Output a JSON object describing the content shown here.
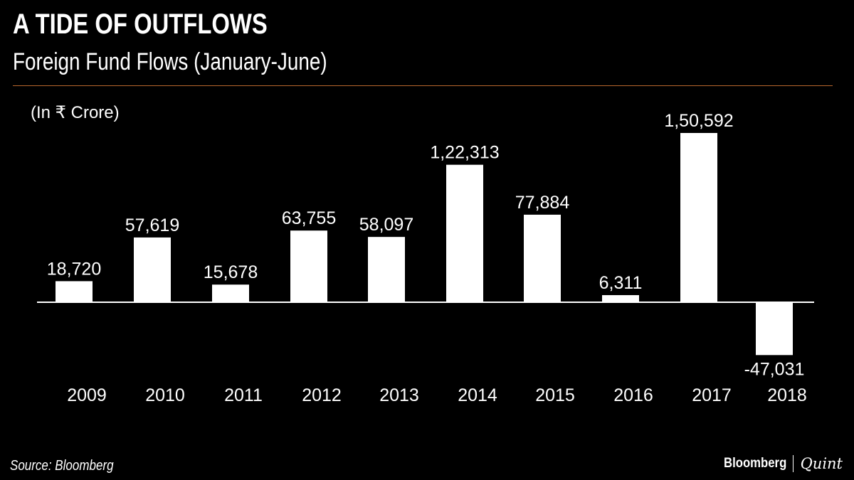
{
  "header": {
    "title": "A TIDE OF OUTFLOWS",
    "subtitle": "Foreign Fund Flows (January-June)",
    "units": "(In ₹ Crore)"
  },
  "footer": {
    "source": "Source: Bloomberg",
    "brand_primary": "Bloomberg",
    "brand_secondary": "Quint"
  },
  "colors": {
    "background": "#000000",
    "bars": "#ffffff",
    "divider": "#b8672c",
    "text": "#ffffff"
  },
  "chart_data": {
    "type": "bar",
    "title": "A TIDE OF OUTFLOWS",
    "subtitle": "Foreign Fund Flows (January-June)",
    "ylabel": "(In ₹ Crore)",
    "xlabel": "",
    "categories": [
      "2009",
      "2010",
      "2011",
      "2012",
      "2013",
      "2014",
      "2015",
      "2016",
      "2017",
      "2018"
    ],
    "values": [
      18720,
      57619,
      15678,
      63755,
      58097,
      122313,
      77884,
      6311,
      150592,
      -47031
    ],
    "value_labels": [
      "18,720",
      "57,619",
      "15,678",
      "63,755",
      "58,097",
      "1,22,313",
      "77,884",
      "6,311",
      "1,50,592",
      "-47,031"
    ],
    "ylim": [
      -47031,
      150592
    ],
    "grid": false,
    "legend": "none"
  }
}
